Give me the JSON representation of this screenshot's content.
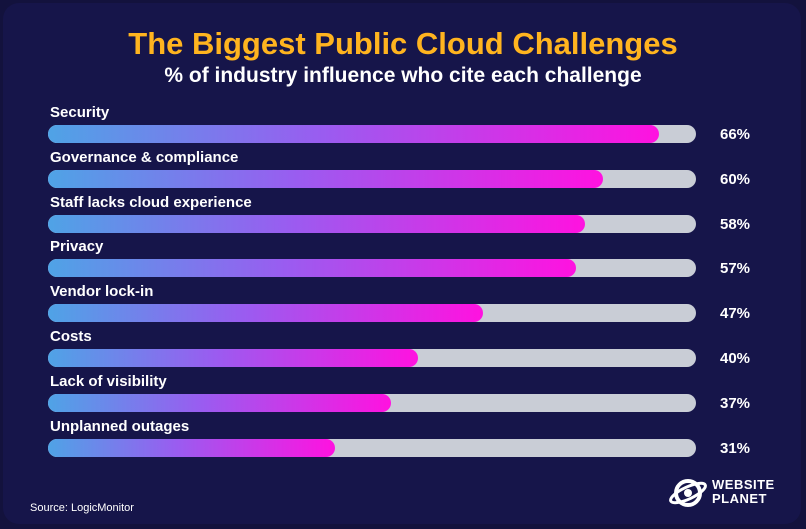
{
  "header": {
    "title": "The Biggest Public Cloud Challenges",
    "subtitle": "% of industry influence who cite each challenge"
  },
  "footer": {
    "source": "Source: LogicMonitor",
    "logo_line1": "WEBSITE",
    "logo_line2": "PLANET"
  },
  "colors": {
    "background": "#16154a",
    "title": "#ffb41f",
    "track": "#c9cdd6",
    "gradient_start": "#4fa3e6",
    "gradient_end": "#ff12e0"
  },
  "chart_data": {
    "type": "bar",
    "orientation": "horizontal",
    "title": "The Biggest Public Cloud Challenges",
    "subtitle": "% of industry influence who cite each challenge",
    "categories": [
      "Security",
      "Governance & compliance",
      "Staff lacks cloud experience",
      "Privacy",
      "Vendor lock-in",
      "Costs",
      "Lack of visibility",
      "Unplanned outages"
    ],
    "values": [
      66,
      60,
      58,
      57,
      47,
      40,
      37,
      31
    ],
    "value_labels": [
      "66%",
      "60%",
      "58%",
      "57%",
      "47%",
      "40%",
      "37%",
      "31%"
    ],
    "xlim": [
      0,
      70
    ],
    "grid": false,
    "legend": "none"
  }
}
